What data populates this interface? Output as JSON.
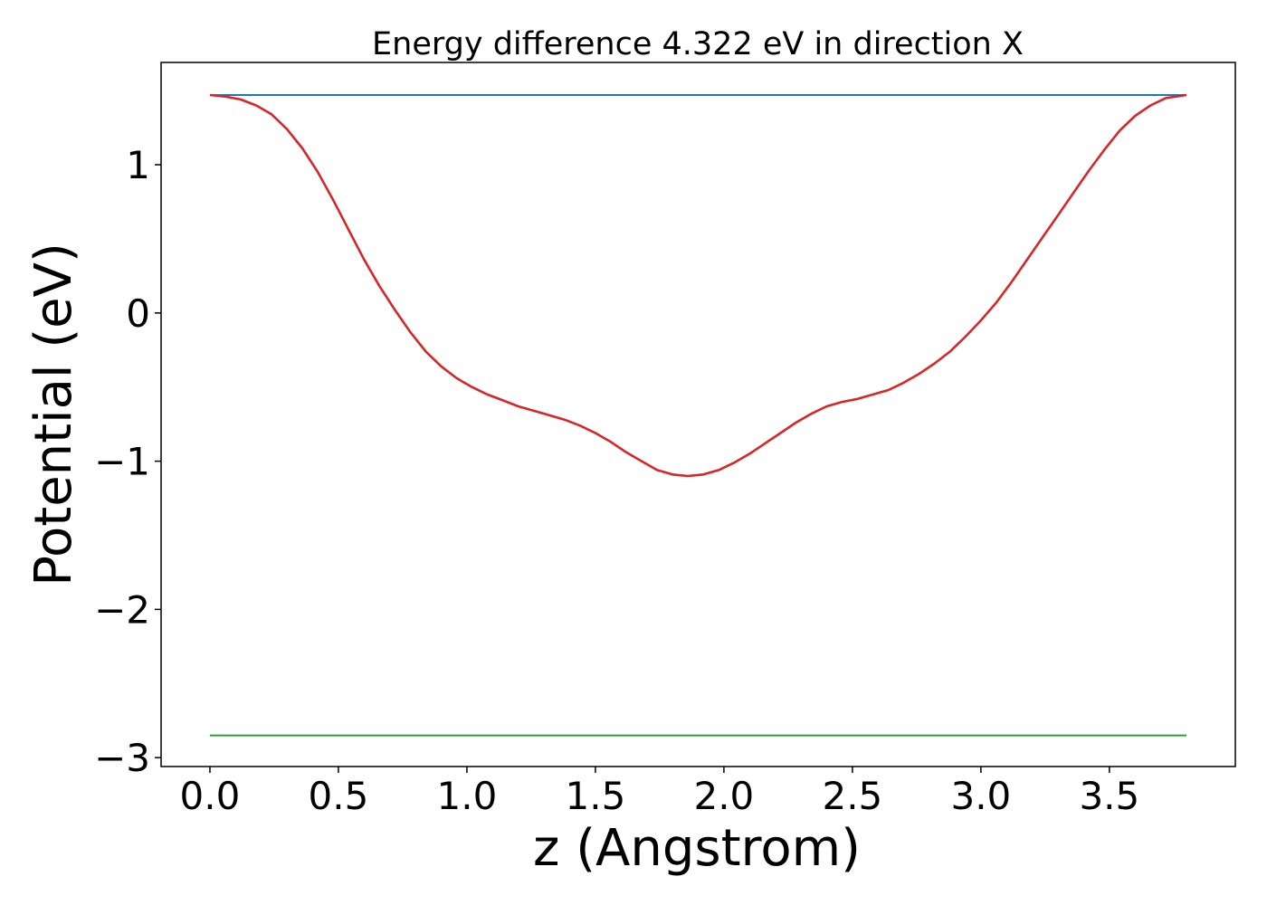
{
  "chart_data": {
    "type": "line",
    "title": "Energy difference 4.322 eV in direction X",
    "xlabel": "z (Angstrom)",
    "ylabel": "Potential (eV)",
    "xlim": [
      -0.19,
      3.99
    ],
    "ylim": [
      -3.06,
      1.69
    ],
    "xticks": [
      0.0,
      0.5,
      1.0,
      1.5,
      2.0,
      2.5,
      3.0,
      3.5
    ],
    "xtick_labels": [
      "0.0",
      "0.5",
      "1.0",
      "1.5",
      "2.0",
      "2.5",
      "3.0",
      "3.5"
    ],
    "yticks": [
      1,
      0,
      -1,
      -2,
      -3
    ],
    "ytick_labels": [
      "1",
      "0",
      "−1",
      "−2",
      "−3"
    ],
    "grid": false,
    "series": [
      {
        "color": "#1f77b4",
        "x": [
          0.0,
          3.8
        ],
        "y": [
          1.47,
          1.47
        ]
      },
      {
        "color": "#2ca02c",
        "x": [
          0.0,
          3.8
        ],
        "y": [
          -2.85,
          -2.85
        ]
      },
      {
        "color": "#d62728",
        "x": [
          0.0,
          0.06,
          0.12,
          0.18,
          0.24,
          0.3,
          0.36,
          0.42,
          0.48,
          0.54,
          0.6,
          0.66,
          0.72,
          0.78,
          0.84,
          0.9,
          0.96,
          1.02,
          1.08,
          1.14,
          1.2,
          1.26,
          1.32,
          1.38,
          1.44,
          1.5,
          1.56,
          1.62,
          1.68,
          1.74,
          1.8,
          1.86,
          1.92,
          1.98,
          2.04,
          2.1,
          2.16,
          2.22,
          2.28,
          2.34,
          2.4,
          2.46,
          2.52,
          2.58,
          2.64,
          2.7,
          2.76,
          2.82,
          2.88,
          2.94,
          3.0,
          3.06,
          3.12,
          3.18,
          3.24,
          3.3,
          3.36,
          3.42,
          3.48,
          3.54,
          3.6,
          3.66,
          3.72,
          3.8
        ],
        "y": [
          1.47,
          1.46,
          1.44,
          1.4,
          1.34,
          1.24,
          1.11,
          0.95,
          0.76,
          0.56,
          0.36,
          0.18,
          0.02,
          -0.13,
          -0.26,
          -0.36,
          -0.44,
          -0.5,
          -0.55,
          -0.59,
          -0.63,
          -0.66,
          -0.69,
          -0.72,
          -0.76,
          -0.81,
          -0.87,
          -0.94,
          -1.0,
          -1.06,
          -1.09,
          -1.1,
          -1.09,
          -1.06,
          -1.01,
          -0.95,
          -0.88,
          -0.81,
          -0.74,
          -0.68,
          -0.63,
          -0.6,
          -0.58,
          -0.55,
          -0.52,
          -0.47,
          -0.41,
          -0.34,
          -0.26,
          -0.16,
          -0.05,
          0.07,
          0.21,
          0.36,
          0.51,
          0.66,
          0.81,
          0.96,
          1.1,
          1.23,
          1.33,
          1.4,
          1.45,
          1.47
        ]
      }
    ]
  }
}
